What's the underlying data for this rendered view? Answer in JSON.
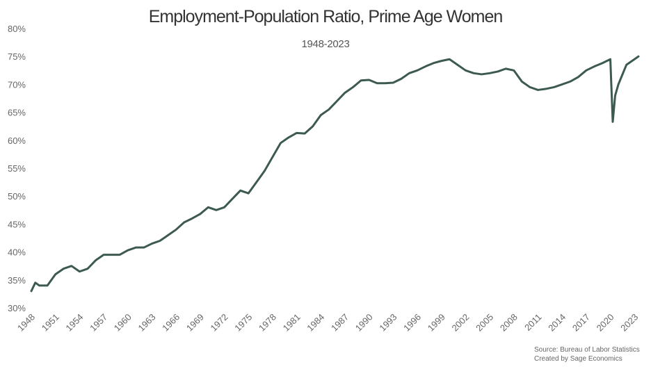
{
  "chart_data": {
    "type": "line",
    "title": "Employment-Population Ratio, Prime Age Women",
    "subtitle": "1948-2023",
    "source": "Source: Bureau of Labor Statistics",
    "credit": "Created by Sage Economics",
    "color": "#3d5a50",
    "grid": false,
    "x": [
      1948,
      1948.5,
      1949,
      1950,
      1951,
      1952,
      1953,
      1954,
      1955,
      1956,
      1957,
      1958,
      1959,
      1960,
      1961,
      1962,
      1963,
      1964,
      1965,
      1966,
      1967,
      1968,
      1969,
      1970,
      1971,
      1972,
      1973,
      1974,
      1975,
      1976,
      1977,
      1978,
      1979,
      1980,
      1981,
      1982,
      1983,
      1984,
      1985,
      1986,
      1987,
      1988,
      1989,
      1990,
      1991,
      1992,
      1993,
      1994,
      1995,
      1996,
      1997,
      1998,
      1999,
      2000,
      2001,
      2002,
      2003,
      2004,
      2005,
      2006,
      2007,
      2008,
      2009,
      2010,
      2011,
      2012,
      2013,
      2014,
      2015,
      2016,
      2017,
      2018,
      2019,
      2020,
      2020.3,
      2020.6,
      2021,
      2022,
      2023,
      2023.5
    ],
    "values": [
      33,
      34.5,
      34,
      34,
      36,
      37,
      37.5,
      36.5,
      37,
      38.5,
      39.5,
      39.5,
      39.5,
      40.3,
      40.8,
      40.8,
      41.5,
      42,
      43,
      44,
      45.3,
      46,
      46.8,
      48,
      47.5,
      48,
      49.5,
      51,
      50.5,
      52.5,
      54.5,
      57,
      59.5,
      60.5,
      61.3,
      61.2,
      62.5,
      64.5,
      65.5,
      67,
      68.5,
      69.5,
      70.7,
      70.8,
      70.2,
      70.2,
      70.3,
      71,
      72,
      72.5,
      73.2,
      73.8,
      74.2,
      74.5,
      73.5,
      72.5,
      72,
      71.8,
      72,
      72.3,
      72.8,
      72.5,
      70.5,
      69.5,
      69,
      69.2,
      69.5,
      70,
      70.5,
      71.3,
      72.5,
      73.2,
      73.8,
      74.5,
      63.3,
      68,
      70,
      73.5,
      74.5,
      75
    ],
    "xlim": [
      1948,
      2023.5
    ],
    "xticks": [
      1948,
      1951,
      1954,
      1957,
      1960,
      1963,
      1966,
      1969,
      1972,
      1975,
      1978,
      1981,
      1984,
      1987,
      1990,
      1993,
      1996,
      1999,
      2002,
      2005,
      2008,
      2011,
      2014,
      2017,
      2020,
      2023
    ],
    "ylim": [
      30,
      80
    ],
    "yticks": [
      {
        "value": 30,
        "label": "30%"
      },
      {
        "value": 35,
        "label": "35%"
      },
      {
        "value": 40,
        "label": "40%"
      },
      {
        "value": 45,
        "label": "45%"
      },
      {
        "value": 50,
        "label": "50%"
      },
      {
        "value": 55,
        "label": "55%"
      },
      {
        "value": 60,
        "label": "60%"
      },
      {
        "value": 65,
        "label": "65%"
      },
      {
        "value": 70,
        "label": "70%"
      },
      {
        "value": 75,
        "label": "75%"
      },
      {
        "value": 80,
        "label": "80%"
      }
    ]
  }
}
